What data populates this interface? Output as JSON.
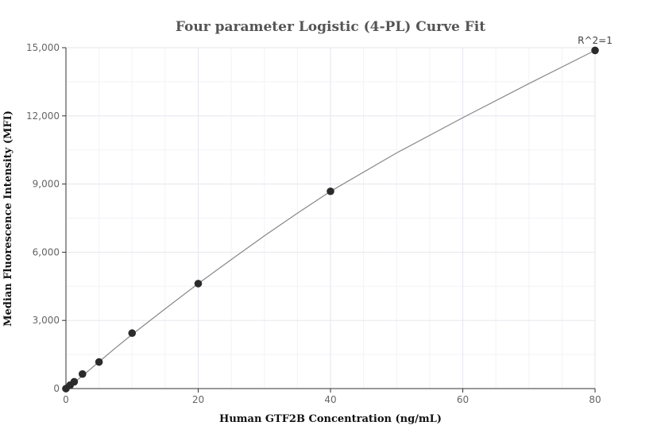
{
  "chart_data": {
    "type": "scatter",
    "title": "Four parameter Logistic (4-PL) Curve Fit",
    "xlabel": "Human GTF2B Concentration (ng/mL)",
    "ylabel": "Median Fluorescence Intensity (MFI)",
    "xlim": [
      0,
      80
    ],
    "ylim": [
      0,
      15000
    ],
    "xticks": [
      0,
      20,
      40,
      60,
      80
    ],
    "yticks": [
      0,
      3000,
      6000,
      9000,
      12000,
      15000
    ],
    "xtick_labels": [
      "0",
      "20",
      "40",
      "60",
      "80"
    ],
    "ytick_labels": [
      "0",
      "3,000",
      "6,000",
      "9,000",
      "12,000",
      "15,000"
    ],
    "grid": true,
    "annotation": "R^2=1",
    "series": [
      {
        "points": [
          {
            "x": 0,
            "y": 0
          },
          {
            "x": 0.625,
            "y": 150
          },
          {
            "x": 1.25,
            "y": 300
          },
          {
            "x": 2.5,
            "y": 640
          },
          {
            "x": 5,
            "y": 1170
          },
          {
            "x": 10,
            "y": 2440
          },
          {
            "x": 20,
            "y": 4620
          },
          {
            "x": 40,
            "y": 8680
          },
          {
            "x": 80,
            "y": 14880
          }
        ]
      }
    ],
    "fit_curve": [
      {
        "x": 0,
        "y": 0
      },
      {
        "x": 1,
        "y": 220
      },
      {
        "x": 2.5,
        "y": 560
      },
      {
        "x": 5,
        "y": 1180
      },
      {
        "x": 7.5,
        "y": 1790
      },
      {
        "x": 10,
        "y": 2380
      },
      {
        "x": 15,
        "y": 3510
      },
      {
        "x": 20,
        "y": 4620
      },
      {
        "x": 25,
        "y": 5680
      },
      {
        "x": 30,
        "y": 6720
      },
      {
        "x": 35,
        "y": 7720
      },
      {
        "x": 40,
        "y": 8680
      },
      {
        "x": 50,
        "y": 10370
      },
      {
        "x": 60,
        "y": 11920
      },
      {
        "x": 70,
        "y": 13420
      },
      {
        "x": 80,
        "y": 14880
      }
    ]
  }
}
